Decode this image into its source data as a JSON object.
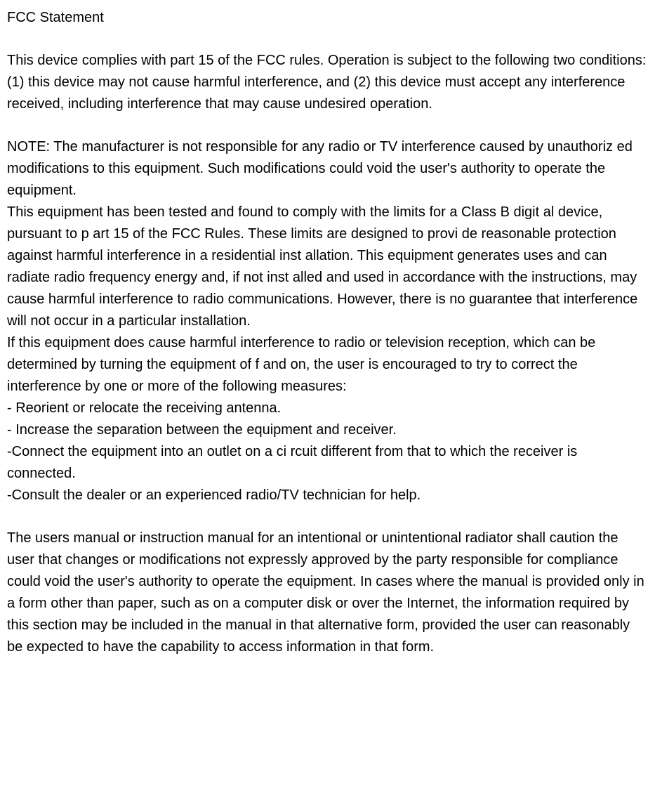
{
  "title": " FCC Statement",
  "paragraphs": {
    "p1": "This device complies with part 15 of the FCC rules. Operation is subject to the following two conditions: (1) this device may not cause harmful interference, and  (2) this device must accept any  interference received, including interference that may cause undesired operation.",
    "p2": "NOTE: The manufacturer is not responsible for any radio or TV interference caused by unauthoriz ed modifications to  this equipment. Such modifications could void the user's authority to operate the equipment.",
    "p3": "This equipment has been tested and found to comply with the limits for a Class B digit al device, pursuant to p art 15 of the FCC Rules.  These limits are designed to provi de reasonable protection against harmful interference in a  residential inst allation. This equipment  generates uses and can radiate radio frequency energy and, if not inst  alled and used in accordance with the instructions, may cause  harmful interference to radio communications. However, there is no guarantee that interference will not  occur in a particular installation.",
    "p4": "If  this equipment does cause harmful interference to radio or television reception, which can be determined by  turning the equipment of f and on, the user is encouraged to try to correct the interference by one or more of the following measures:",
    "m1": "- Reorient or relocate the receiving antenna.",
    "m2": "- Increase the separation between the equipment and receiver.",
    "m3": "-Connect the equipment into an outlet on a ci rcuit different from that to which the receiver is connected.",
    "m4": "-Consult the dealer or an experienced radio/TV technician for help.",
    "p5": "The users manual or instruction manual for an intentional or unintentional radiator shall caution the user that changes or modifications not expressly approved by the party responsible for compliance could void the user's authority to operate the equipment.  In cases where the manual is provided only in a form other than paper, such as on a computer disk or over the Internet, the information required by this section may be included in the manual in that alternative form, provided the user can reasonably be expected to have the capability to access information in that form."
  }
}
